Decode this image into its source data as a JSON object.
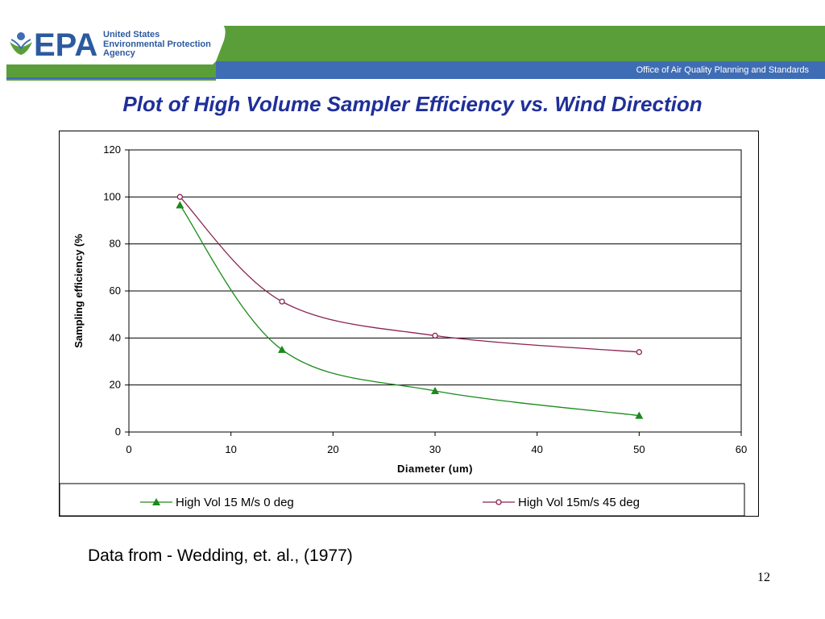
{
  "header": {
    "agency_line1": "United States",
    "agency_line2": "Environmental Protection",
    "agency_line3": "Agency",
    "logo_letters": "EPA",
    "office": "Office of Air Quality Planning and Standards",
    "colors": {
      "green": "#5a9e3a",
      "blue": "#3f6db5",
      "epa_blue": "#2c5aa0"
    }
  },
  "slide": {
    "title": "Plot of High Volume Sampler Efficiency vs. Wind Direction",
    "source_note": "Data from - Wedding, et. al., (1977)",
    "page_number": "12"
  },
  "chart_data": {
    "type": "line",
    "title": "",
    "xlabel": "Diameter (um)",
    "ylabel": "Sampling efficiency (%",
    "xlim": [
      0,
      60
    ],
    "ylim": [
      0,
      120
    ],
    "x_ticks": [
      0,
      10,
      20,
      30,
      40,
      50,
      60
    ],
    "y_ticks": [
      0,
      20,
      40,
      60,
      80,
      100,
      120
    ],
    "grid": "horizontal",
    "legend_position": "bottom",
    "series": [
      {
        "name": "High Vol 15 M/s 0 deg",
        "color": "#1a8a1a",
        "marker": "triangle-filled",
        "x": [
          5,
          15,
          30,
          50
        ],
        "y": [
          96.5,
          35,
          17.5,
          7
        ]
      },
      {
        "name": "High Vol 15m/s 45 deg",
        "color": "#8b2252",
        "marker": "circle-open",
        "x": [
          5,
          15,
          30,
          50
        ],
        "y": [
          100,
          55.5,
          41,
          34
        ]
      }
    ]
  }
}
